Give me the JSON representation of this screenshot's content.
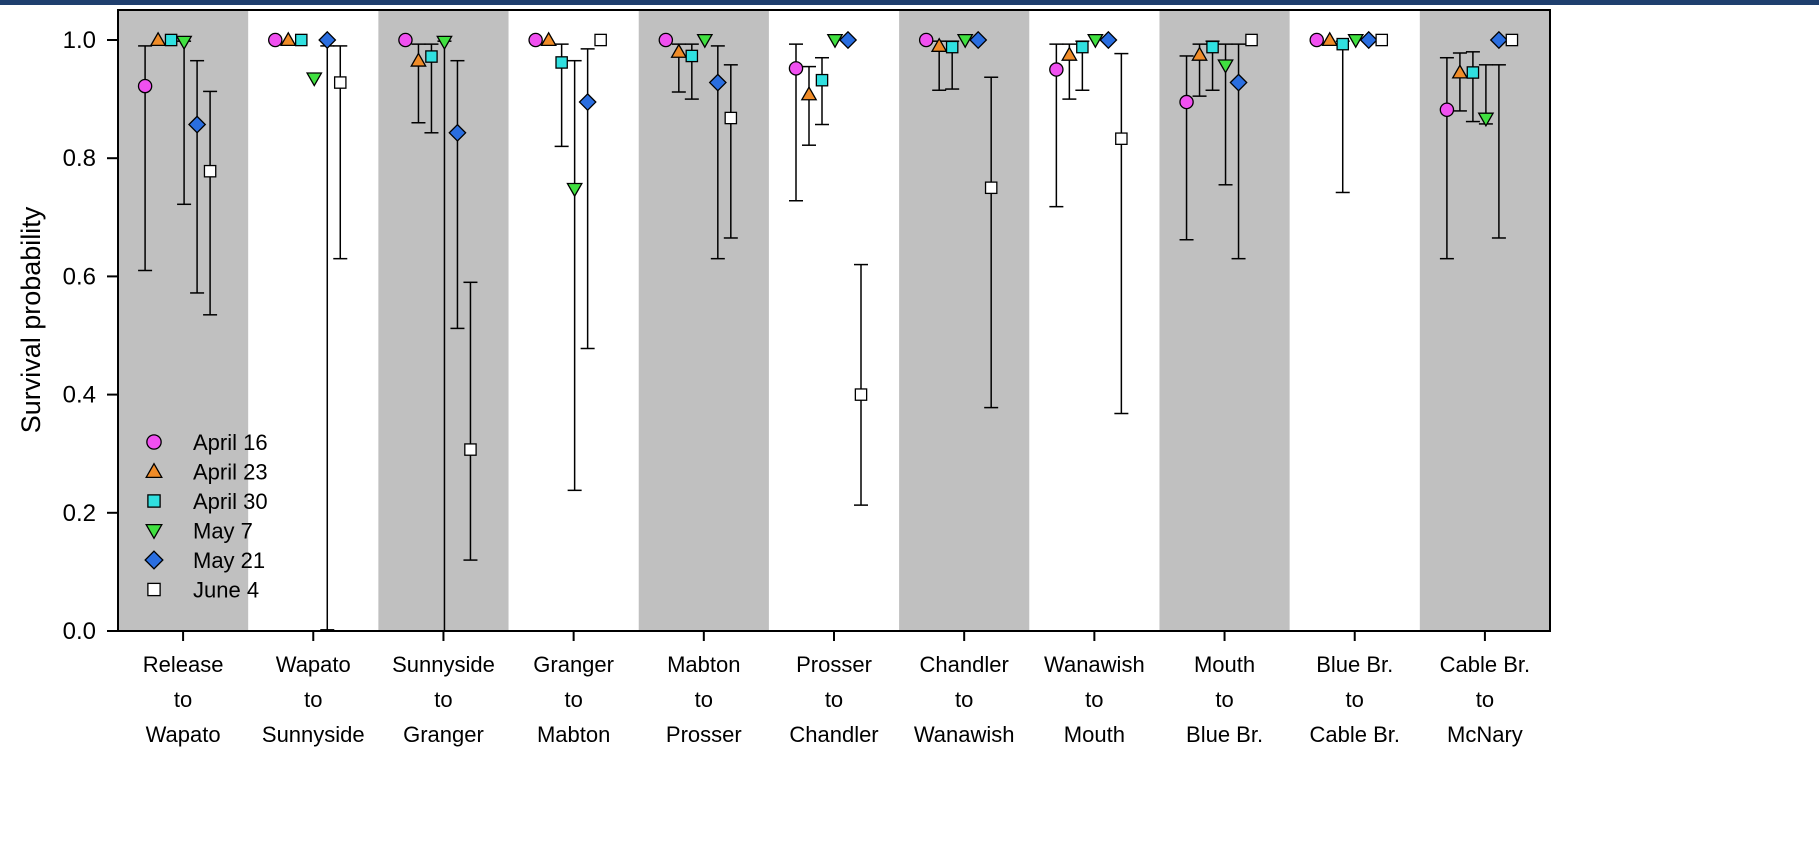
{
  "chart_data": {
    "type": "scatter",
    "title": "",
    "xlabel": "",
    "ylabel": "Survival probability",
    "ylim": [
      0,
      1.05
    ],
    "yticks": [
      "0.0",
      "0.2",
      "0.4",
      "0.6",
      "0.8",
      "1.0"
    ],
    "grid": false,
    "legend_position": "lower-left",
    "shading": "alternating grey bands behind reaches (odd reaches shaded)",
    "categories": [
      [
        "Release",
        "to",
        "Wapato"
      ],
      [
        "Wapato",
        "to",
        "Sunnyside"
      ],
      [
        "Sunnyside",
        "to",
        "Granger"
      ],
      [
        "Granger",
        "to",
        "Mabton"
      ],
      [
        "Mabton",
        "to",
        "Prosser"
      ],
      [
        "Prosser",
        "to",
        "Chandler"
      ],
      [
        "Chandler",
        "to",
        "Wanawish"
      ],
      [
        "Wanawish",
        "to",
        "Mouth"
      ],
      [
        "Mouth",
        "to",
        "Blue Br."
      ],
      [
        "Blue Br.",
        "to",
        "Cable Br."
      ],
      [
        "Cable Br.",
        "to",
        "McNary"
      ]
    ],
    "series": [
      {
        "name": "April 16",
        "marker": "circle",
        "color": "#f050f0",
        "values": [
          0.922,
          1.0,
          1.0,
          1.0,
          1.0,
          0.952,
          1.0,
          0.95,
          0.895,
          1.0,
          0.882
        ],
        "lower": [
          0.61,
          null,
          null,
          null,
          null,
          0.728,
          null,
          0.718,
          0.662,
          null,
          0.63
        ],
        "upper": [
          0.99,
          null,
          null,
          null,
          null,
          0.993,
          null,
          0.993,
          0.973,
          null,
          0.97
        ]
      },
      {
        "name": "April 23",
        "marker": "triangle-up",
        "color": "#f08c28",
        "values": [
          1.0,
          1.0,
          0.965,
          1.0,
          0.98,
          0.908,
          0.99,
          0.975,
          0.975,
          1.0,
          0.945
        ],
        "lower": [
          null,
          null,
          0.86,
          null,
          0.912,
          0.822,
          0.915,
          0.9,
          0.905,
          null,
          0.88
        ],
        "upper": [
          null,
          null,
          0.993,
          null,
          0.993,
          0.955,
          0.998,
          0.993,
          0.993,
          null,
          0.978
        ]
      },
      {
        "name": "April 30",
        "marker": "square",
        "color": "#30e0e0",
        "values": [
          1.0,
          1.0,
          0.972,
          0.962,
          0.973,
          0.932,
          0.988,
          0.988,
          0.988,
          0.993,
          0.945
        ],
        "lower": [
          null,
          null,
          0.843,
          0.82,
          0.9,
          0.857,
          0.917,
          0.915,
          0.915,
          0.742,
          0.862
        ],
        "upper": [
          null,
          null,
          0.993,
          0.993,
          0.993,
          0.97,
          0.998,
          0.998,
          0.998,
          0.998,
          0.98
        ]
      },
      {
        "name": "May 7",
        "marker": "triangle-down",
        "color": "#40e040",
        "values": [
          0.997,
          0.935,
          0.997,
          0.748,
          1.0,
          1.0,
          1.0,
          1.0,
          0.957,
          1.0,
          0.867
        ],
        "lower": [
          0.722,
          null,
          0.0,
          0.238,
          null,
          null,
          null,
          null,
          0.755,
          null,
          0.858
        ],
        "upper": [
          0.998,
          null,
          0.998,
          0.965,
          null,
          null,
          null,
          null,
          0.993,
          null,
          0.958
        ]
      },
      {
        "name": "May 21",
        "marker": "diamond",
        "color": "#2a6ee0",
        "values": [
          0.857,
          1.0,
          0.843,
          0.895,
          0.928,
          1.0,
          1.0,
          1.0,
          0.928,
          1.0,
          1.0
        ],
        "lower": [
          0.572,
          0.002,
          0.512,
          0.478,
          0.63,
          null,
          null,
          null,
          0.63,
          null,
          0.665
        ],
        "upper": [
          0.965,
          0.99,
          0.965,
          0.985,
          0.99,
          null,
          null,
          null,
          0.993,
          null,
          0.958
        ]
      },
      {
        "name": "June 4",
        "marker": "open-square",
        "color": "#ffffff",
        "values": [
          0.778,
          0.928,
          0.307,
          1.0,
          0.868,
          0.4,
          0.75,
          0.833,
          1.0,
          1.0,
          1.0
        ],
        "lower": [
          0.535,
          0.63,
          0.12,
          null,
          0.665,
          0.213,
          0.378,
          0.368,
          null,
          null,
          null
        ],
        "upper": [
          0.913,
          0.99,
          0.59,
          null,
          0.958,
          0.62,
          0.937,
          0.977,
          null,
          null,
          null
        ]
      }
    ]
  },
  "colors": {
    "band": "#c0c0c0",
    "header_bar": "#1f3f6e"
  }
}
